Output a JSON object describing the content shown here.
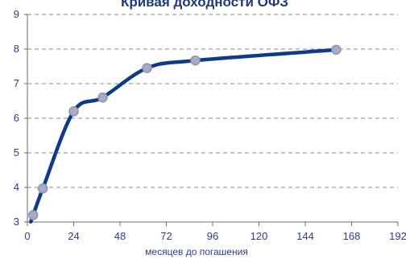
{
  "chart_data": {
    "type": "line",
    "title": "Кривая доходности ОФЗ",
    "xlabel": "месяцев до погашения",
    "ylabel": "",
    "xlim": [
      0,
      192
    ],
    "ylim": [
      3,
      9
    ],
    "x_ticks": [
      "0",
      "24",
      "48",
      "72",
      "96",
      "120",
      "144",
      "168",
      "192"
    ],
    "y_ticks": [
      "3",
      "4",
      "5",
      "6",
      "7",
      "8",
      "9"
    ],
    "grid": "horizontal-dashed",
    "series": [
      {
        "x": [
          3,
          8,
          24,
          39,
          62,
          87,
          160
        ],
        "y": [
          3.2,
          3.97,
          6.2,
          6.6,
          7.45,
          7.67,
          7.98
        ]
      }
    ],
    "colors": {
      "line": "#0f3a8a",
      "marker_fill": "#a8abc4",
      "marker_stroke": "#8f93b1",
      "grid": "#8a8a8a",
      "axis": "#6b6b6b",
      "text": "#2d3e8c"
    }
  }
}
